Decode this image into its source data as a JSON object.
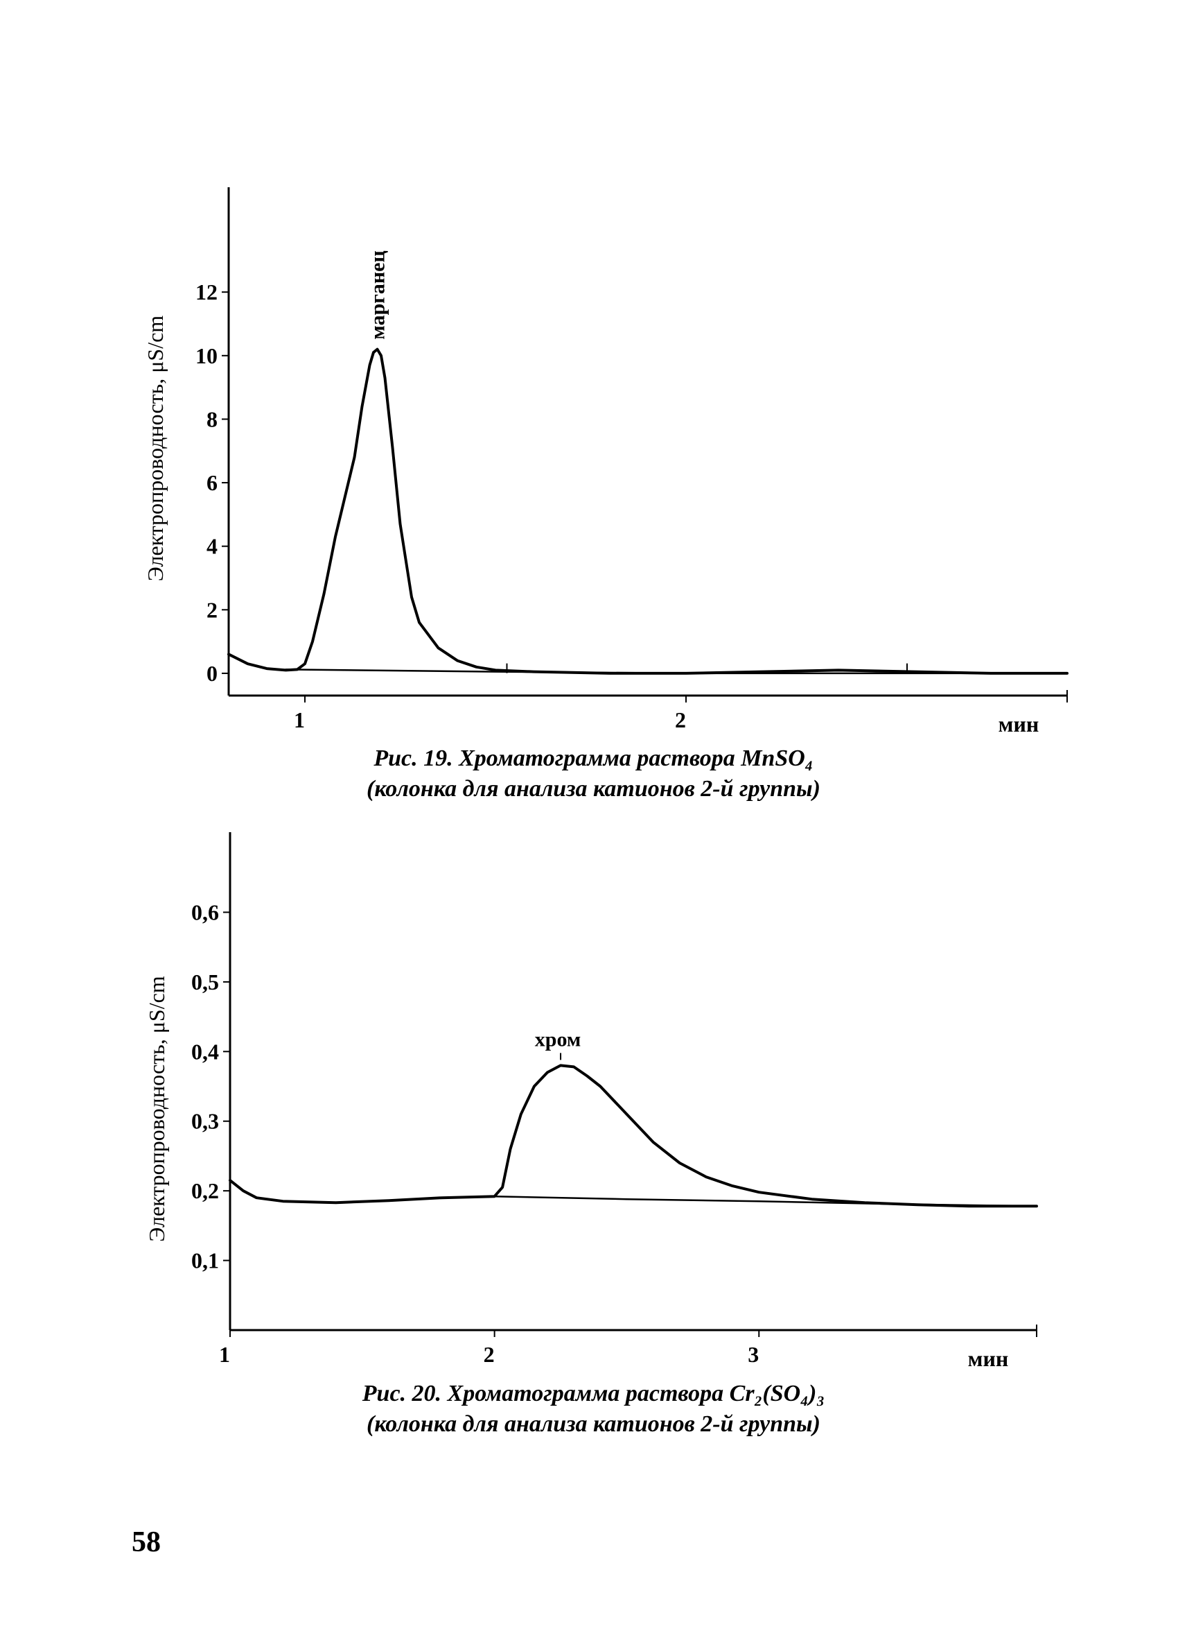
{
  "chart_data": [
    {
      "type": "line",
      "title": "Рис. 19. Хроматограмма раствора MnSO₄",
      "subtitle": "(колонка для анализа катионов 2-й группы)",
      "xlabel": "мин",
      "ylabel": "Электропроводность, μS/cm",
      "xlim": [
        0.8,
        3.0
      ],
      "ylim": [
        -0.7,
        15.3
      ],
      "x_ticks": [
        1,
        2
      ],
      "y_ticks": [
        0,
        2,
        4,
        6,
        8,
        10,
        12
      ],
      "peak_label": "марганец",
      "series": [
        {
          "name": "signal",
          "x": [
            0.8,
            0.85,
            0.9,
            0.95,
            0.98,
            1.0,
            1.02,
            1.05,
            1.08,
            1.1,
            1.13,
            1.15,
            1.17,
            1.18,
            1.19,
            1.2,
            1.21,
            1.23,
            1.25,
            1.28,
            1.3,
            1.35,
            1.4,
            1.45,
            1.5,
            1.6,
            1.8,
            2.0,
            2.2,
            2.4,
            2.6,
            2.8,
            3.0
          ],
          "y": [
            0.6,
            0.3,
            0.15,
            0.1,
            0.12,
            0.3,
            1.0,
            2.5,
            4.3,
            5.3,
            6.8,
            8.4,
            9.7,
            10.1,
            10.2,
            10.0,
            9.3,
            7.1,
            4.7,
            2.4,
            1.6,
            0.8,
            0.4,
            0.2,
            0.1,
            0.05,
            0.0,
            0.0,
            0.05,
            0.1,
            0.05,
            0.0,
            0.0
          ]
        },
        {
          "name": "baseline",
          "x": [
            0.95,
            1.5,
            2.0,
            2.5,
            3.0
          ],
          "y": [
            0.12,
            0.05,
            0.0,
            0.0,
            0.0
          ]
        }
      ]
    },
    {
      "type": "line",
      "title": "Рис. 20. Хроматограмма раствора Cr₂(SO₄)₃",
      "subtitle": "(колонка для анализа катионов 2-й группы)",
      "xlabel": "мин",
      "ylabel": "Электропроводность, μS/cm",
      "xlim": [
        1.0,
        4.05
      ],
      "ylim": [
        0.0,
        0.715
      ],
      "x_ticks": [
        1,
        2,
        3
      ],
      "y_ticks": [
        "0,1",
        "0,2",
        "0,3",
        "0,4",
        "0,5",
        "0,6"
      ],
      "y_tick_values": [
        0.1,
        0.2,
        0.3,
        0.4,
        0.5,
        0.6
      ],
      "peak_label": "хром",
      "series": [
        {
          "name": "signal",
          "x": [
            1.0,
            1.05,
            1.1,
            1.2,
            1.4,
            1.6,
            1.8,
            2.0,
            2.03,
            2.06,
            2.1,
            2.15,
            2.2,
            2.25,
            2.3,
            2.35,
            2.4,
            2.5,
            2.6,
            2.7,
            2.8,
            2.9,
            3.0,
            3.2,
            3.4,
            3.6,
            3.8,
            4.05
          ],
          "y": [
            0.215,
            0.2,
            0.19,
            0.185,
            0.183,
            0.186,
            0.19,
            0.192,
            0.205,
            0.26,
            0.31,
            0.35,
            0.37,
            0.38,
            0.378,
            0.365,
            0.35,
            0.31,
            0.27,
            0.24,
            0.22,
            0.207,
            0.198,
            0.188,
            0.183,
            0.18,
            0.178,
            0.178
          ]
        },
        {
          "name": "baseline",
          "x": [
            2.0,
            2.5,
            3.0,
            3.5,
            4.05
          ],
          "y": [
            0.192,
            0.188,
            0.185,
            0.181,
            0.178
          ]
        }
      ]
    }
  ],
  "captions": {
    "fig19_line1": "Рис. 19. Хроматограмма раствора MnSO₄",
    "fig19_line2": "(колонка для анализа катионов 2-й группы)",
    "fig20_line1": "Рис. 20. Хроматограмма раствора Cr₂(SO₄)₃",
    "fig20_line2": "(колонка для анализа катионов 2-й группы)"
  },
  "page_number": "58"
}
